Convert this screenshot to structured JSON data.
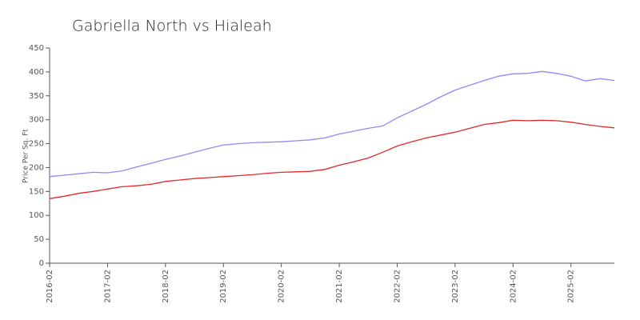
{
  "chart_data": {
    "type": "line",
    "title": "Gabriella North vs Hialeah",
    "y_label": "Price Per Sq. Ft",
    "x": [
      "2016-02",
      "2016-05",
      "2016-08",
      "2016-11",
      "2017-02",
      "2017-05",
      "2017-08",
      "2017-11",
      "2018-02",
      "2018-05",
      "2018-08",
      "2018-11",
      "2019-02",
      "2019-05",
      "2019-08",
      "2019-11",
      "2020-02",
      "2020-05",
      "2020-08",
      "2020-11",
      "2021-02",
      "2021-05",
      "2021-08",
      "2021-11",
      "2022-02",
      "2022-05",
      "2022-08",
      "2022-11",
      "2023-02",
      "2023-05",
      "2023-08",
      "2023-11",
      "2024-02",
      "2024-05",
      "2024-08",
      "2024-11",
      "2025-02",
      "2025-05",
      "2025-08",
      "2025-11"
    ],
    "series": [
      {
        "color": "#8c8cf5",
        "values": [
          181,
          184,
          187,
          190,
          189,
          193,
          201,
          209,
          217,
          224,
          232,
          240,
          247,
          250,
          252,
          253,
          254,
          256,
          258,
          262,
          270,
          276,
          282,
          287,
          304,
          318,
          332,
          348,
          362,
          372,
          382,
          391,
          396,
          397,
          401,
          397,
          391,
          381,
          386,
          382
        ]
      },
      {
        "color": "#e62828",
        "values": [
          135,
          140,
          146,
          150,
          155,
          160,
          162,
          165,
          171,
          174,
          177,
          179,
          181,
          183,
          185,
          188,
          190,
          191,
          192,
          196,
          205,
          212,
          220,
          232,
          245,
          254,
          262,
          268,
          274,
          282,
          290,
          294,
          299,
          298,
          299,
          298,
          295,
          290,
          286,
          283
        ]
      }
    ],
    "xlim": [
      "2016-02",
      "2025-11"
    ],
    "xticks": [
      "2016-02",
      "2017-02",
      "2018-02",
      "2019-02",
      "2020-02",
      "2021-02",
      "2022-02",
      "2023-02",
      "2024-02",
      "2025-02"
    ],
    "ylim": [
      0,
      450
    ],
    "yticks": [
      0,
      50,
      100,
      150,
      200,
      250,
      300,
      350,
      400,
      450
    ]
  }
}
